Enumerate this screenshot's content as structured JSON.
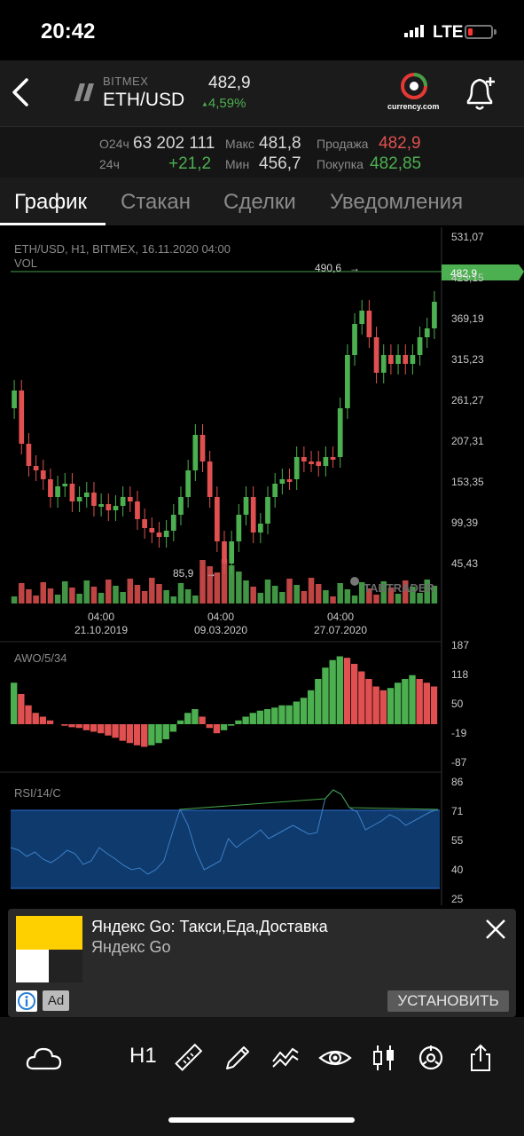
{
  "status_bar": {
    "time": "20:42",
    "network": "LTE"
  },
  "header": {
    "exchange": "BITMEX",
    "pair": "ETH/USD",
    "price": "482,9",
    "change": "4,59%",
    "partner_logo_text": "currency.com"
  },
  "stats": {
    "volume_label": "О24ч",
    "volume_value": "63 202 111",
    "change_label": "24ч",
    "change_value": "+21,2",
    "max_label": "Макс",
    "max_value": "481,8",
    "min_label": "Мин",
    "min_value": "456,7",
    "sell_label": "Продажа",
    "sell_value": "482,9",
    "buy_label": "Покупка",
    "buy_value": "482,85"
  },
  "tabs": [
    {
      "label": "График",
      "active": true
    },
    {
      "label": "Стакан",
      "active": false
    },
    {
      "label": "Сделки",
      "active": false
    },
    {
      "label": "Уведомления",
      "active": false
    }
  ],
  "chart": {
    "info_line": "ETH/USD, H1, BITMEX, 16.11.2020 04:00",
    "vol_label": "VOL",
    "watermark": "TABTRADER",
    "high_marker": "490,6",
    "low_marker": "85,9",
    "current_price_badge": "482,9",
    "price_axis": [
      "531,07",
      "423,15",
      "369,19",
      "315,23",
      "261,27",
      "207,31",
      "153,35",
      "99,39",
      "45,43"
    ],
    "time_axis": [
      {
        "time": "04:00",
        "date": "21.10.2019"
      },
      {
        "time": "04:00",
        "date": "09.03.2020"
      },
      {
        "time": "04:00",
        "date": "27.07.2020"
      }
    ],
    "awo_label": "AWO/5/34",
    "awo_axis": [
      "187",
      "118",
      "50",
      "-19",
      "-87"
    ],
    "rsi_label": "RSI/14/C",
    "rsi_axis": [
      "86",
      "71",
      "55",
      "40",
      "25"
    ]
  },
  "chart_data": {
    "type": "line",
    "title": "ETH/USD, H1, BITMEX, 16.11.2020 04:00",
    "series": [
      {
        "name": "ETH/USD",
        "x": [
          "21.10.2019",
          "09.03.2020",
          "27.07.2020",
          "16.11.2020"
        ],
        "values": [
          175,
          195,
          320,
          482.9
        ]
      }
    ],
    "ylim": [
      45.43,
      531.07
    ]
  },
  "ad": {
    "title": "Яндекс Go: Такси,Еда,Доставка",
    "subtitle": "Яндекс Go",
    "badge": "Ad",
    "install": "УСТАНОВИТЬ"
  },
  "toolbar": {
    "timeframe": "H1"
  },
  "colors": {
    "up": "#4caf50",
    "down": "#e05050",
    "background": "#000000",
    "panel": "#1b1b1b",
    "rsi_band": "#0e3a6e"
  }
}
